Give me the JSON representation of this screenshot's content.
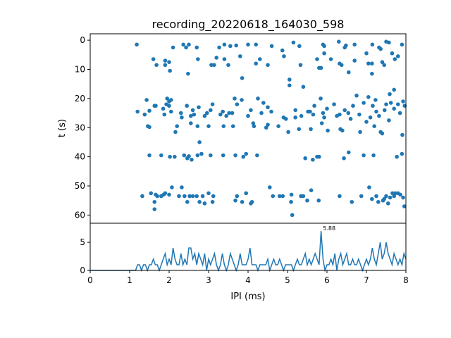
{
  "chart_data": [
    {
      "type": "scatter",
      "title": "recording_20220618_164030_598",
      "xlabel": "",
      "ylabel": "t (s)",
      "xlim": [
        0,
        8
      ],
      "ylim": [
        62.8,
        -2.2
      ],
      "y_inverted": true,
      "yticks": [
        "0",
        "10",
        "20",
        "30",
        "40",
        "50",
        "60"
      ],
      "color": "#1f77b4",
      "points": [
        [
          1.18,
          1.5
        ],
        [
          2.1,
          2.5
        ],
        [
          2.36,
          1.5
        ],
        [
          2.43,
          2.5
        ],
        [
          2.5,
          1.5
        ],
        [
          2.7,
          2.5
        ],
        [
          3.27,
          2.5
        ],
        [
          3.7,
          1.8
        ],
        [
          4.0,
          1.5
        ],
        [
          4.2,
          1.5
        ],
        [
          4.6,
          2
        ],
        [
          4.87,
          3.5
        ],
        [
          5.15,
          0.8
        ],
        [
          5.3,
          2
        ],
        [
          5.9,
          1.5
        ],
        [
          5.93,
          2
        ],
        [
          6.3,
          0.5
        ],
        [
          6.45,
          2.5
        ],
        [
          6.7,
          1.5
        ],
        [
          7.15,
          1.5
        ],
        [
          7.32,
          2.5
        ],
        [
          7.57,
          0.8
        ],
        [
          7.9,
          1.5
        ],
        [
          3.4,
          1.5
        ],
        [
          3.55,
          2
        ],
        [
          6.48,
          1.8
        ],
        [
          7.5,
          0.5
        ],
        [
          1.6,
          6.5
        ],
        [
          1.68,
          8.5
        ],
        [
          1.9,
          8.5
        ],
        [
          1.9,
          7
        ],
        [
          2.02,
          10.5
        ],
        [
          2.48,
          11.5
        ],
        [
          2.73,
          6.5
        ],
        [
          3.07,
          8.5
        ],
        [
          3.14,
          8.5
        ],
        [
          3.4,
          6.5
        ],
        [
          3.5,
          8.5
        ],
        [
          3.8,
          5.5
        ],
        [
          3.85,
          13
        ],
        [
          4.2,
          8
        ],
        [
          4.3,
          6.5
        ],
        [
          4.5,
          8.5
        ],
        [
          5.33,
          8.5
        ],
        [
          5.75,
          6.5
        ],
        [
          5.8,
          9.5
        ],
        [
          5.85,
          9.5
        ],
        [
          5.93,
          4.5
        ],
        [
          6.1,
          6.5
        ],
        [
          6.32,
          8
        ],
        [
          6.37,
          8.5
        ],
        [
          6.7,
          7
        ],
        [
          7.0,
          4.5
        ],
        [
          7.05,
          8
        ],
        [
          7.14,
          8
        ],
        [
          7.36,
          3
        ],
        [
          7.72,
          6.5
        ],
        [
          7.8,
          5.5
        ],
        [
          4.91,
          5.5
        ],
        [
          5.05,
          13.5
        ],
        [
          5.05,
          15.5
        ],
        [
          7.14,
          11.5
        ],
        [
          2.0,
          7.5
        ],
        [
          3.2,
          6
        ],
        [
          6.55,
          11
        ],
        [
          7.45,
          8.5
        ],
        [
          7.4,
          7.5
        ],
        [
          7.65,
          4.5
        ],
        [
          1.2,
          24.5
        ],
        [
          1.38,
          25.5
        ],
        [
          1.43,
          20.5
        ],
        [
          1.63,
          22.5
        ],
        [
          1.66,
          22.5
        ],
        [
          1.93,
          22
        ],
        [
          1.95,
          20
        ],
        [
          2.0,
          21
        ],
        [
          2.05,
          20.5
        ],
        [
          1.85,
          23.5
        ],
        [
          1.88,
          25.5
        ],
        [
          2.0,
          22.5
        ],
        [
          2.05,
          24.5
        ],
        [
          2.3,
          25
        ],
        [
          2.32,
          26.5
        ],
        [
          2.55,
          26
        ],
        [
          2.63,
          25.5
        ],
        [
          2.9,
          26
        ],
        [
          2.96,
          25
        ],
        [
          3.05,
          24
        ],
        [
          3.3,
          25.5
        ],
        [
          3.36,
          24.5
        ],
        [
          3.52,
          25
        ],
        [
          3.66,
          20
        ],
        [
          3.72,
          22
        ],
        [
          3.84,
          20.5
        ],
        [
          4.0,
          26
        ],
        [
          4.07,
          24
        ],
        [
          4.34,
          25
        ],
        [
          4.39,
          21.5
        ],
        [
          4.59,
          24.5
        ],
        [
          4.9,
          26.5
        ],
        [
          5.4,
          16
        ],
        [
          5.52,
          24.5
        ],
        [
          5.57,
          24.5
        ],
        [
          5.68,
          22.5
        ],
        [
          5.84,
          20
        ],
        [
          5.9,
          25
        ],
        [
          5.93,
          26.5
        ],
        [
          6.18,
          22
        ],
        [
          6.32,
          25.5
        ],
        [
          6.54,
          25
        ],
        [
          6.66,
          22.5
        ],
        [
          6.82,
          25.5
        ],
        [
          6.93,
          21.5
        ],
        [
          7.16,
          22.5
        ],
        [
          7.23,
          20.5
        ],
        [
          7.32,
          26
        ],
        [
          7.46,
          24
        ],
        [
          7.59,
          18.5
        ],
        [
          7.8,
          22
        ],
        [
          7.93,
          21
        ],
        [
          2.45,
          22.5
        ],
        [
          2.6,
          24
        ],
        [
          2.75,
          23
        ],
        [
          3.1,
          22
        ],
        [
          3.45,
          26
        ],
        [
          3.6,
          25
        ],
        [
          4.25,
          20
        ],
        [
          4.5,
          23
        ],
        [
          5.2,
          24
        ],
        [
          5.35,
          26
        ],
        [
          5.65,
          25.5
        ],
        [
          6.0,
          23.5
        ],
        [
          6.25,
          26
        ],
        [
          6.45,
          24
        ],
        [
          6.6,
          27
        ],
        [
          6.75,
          19
        ],
        [
          7.05,
          19.5
        ],
        [
          7.1,
          26.5
        ],
        [
          7.25,
          24.5
        ],
        [
          7.5,
          22
        ],
        [
          7.62,
          21.5
        ],
        [
          7.7,
          23.5
        ],
        [
          7.85,
          25
        ],
        [
          7.97,
          22.5
        ],
        [
          1.5,
          24.2
        ],
        [
          2.55,
          28.5
        ],
        [
          2.2,
          29.5
        ],
        [
          1.46,
          29.5
        ],
        [
          2.16,
          31.5
        ],
        [
          2.72,
          29.5
        ],
        [
          2.77,
          35
        ],
        [
          3.0,
          29.5
        ],
        [
          3.38,
          29.5
        ],
        [
          3.62,
          29.5
        ],
        [
          4.13,
          28.5
        ],
        [
          4.46,
          30
        ],
        [
          4.77,
          29.5
        ],
        [
          5.02,
          31.5
        ],
        [
          5.29,
          30.5
        ],
        [
          5.59,
          30.5
        ],
        [
          5.87,
          28.5
        ],
        [
          6.02,
          31
        ],
        [
          6.39,
          31
        ],
        [
          6.84,
          31.5
        ],
        [
          7.2,
          29.5
        ],
        [
          7.36,
          31.5
        ],
        [
          7.91,
          32.5
        ],
        [
          4.5,
          29
        ],
        [
          4.96,
          27
        ],
        [
          5.2,
          26.5
        ],
        [
          7.0,
          28
        ],
        [
          7.57,
          27.5
        ],
        [
          7.7,
          17
        ],
        [
          1.5,
          29.8
        ],
        [
          4.15,
          29.5
        ],
        [
          6.34,
          30.5
        ],
        [
          7.4,
          32
        ],
        [
          1.5,
          39.5
        ],
        [
          1.8,
          39.5
        ],
        [
          2.02,
          40
        ],
        [
          2.14,
          40
        ],
        [
          2.38,
          39.5
        ],
        [
          2.46,
          40.5
        ],
        [
          2.57,
          41
        ],
        [
          2.72,
          39.5
        ],
        [
          2.82,
          39
        ],
        [
          3.05,
          39.5
        ],
        [
          3.37,
          39.5
        ],
        [
          3.68,
          39.5
        ],
        [
          3.88,
          40
        ],
        [
          3.95,
          39
        ],
        [
          4.23,
          39.5
        ],
        [
          5.45,
          40.5
        ],
        [
          5.64,
          41
        ],
        [
          5.75,
          40
        ],
        [
          6.43,
          40.5
        ],
        [
          6.55,
          38.5
        ],
        [
          6.93,
          39.5
        ],
        [
          7.18,
          39.5
        ],
        [
          7.77,
          40
        ],
        [
          7.9,
          39
        ],
        [
          5.8,
          40
        ],
        [
          2.5,
          39.8
        ],
        [
          1.32,
          53.5
        ],
        [
          1.54,
          52.5
        ],
        [
          1.63,
          55.5
        ],
        [
          1.63,
          58
        ],
        [
          1.66,
          53
        ],
        [
          1.8,
          53.5
        ],
        [
          1.86,
          53
        ],
        [
          1.9,
          52.5
        ],
        [
          2.07,
          50.5
        ],
        [
          2.25,
          53.5
        ],
        [
          2.32,
          50.5
        ],
        [
          2.39,
          53.5
        ],
        [
          2.46,
          55.5
        ],
        [
          2.52,
          53.5
        ],
        [
          2.7,
          53.5
        ],
        [
          2.77,
          55.5
        ],
        [
          2.9,
          56
        ],
        [
          3.0,
          52.5
        ],
        [
          3.1,
          55.5
        ],
        [
          3.12,
          53.5
        ],
        [
          3.68,
          55
        ],
        [
          3.72,
          53.5
        ],
        [
          3.95,
          52.5
        ],
        [
          4.07,
          56
        ],
        [
          4.55,
          50.5
        ],
        [
          4.63,
          53.5
        ],
        [
          4.8,
          53.5
        ],
        [
          4.88,
          53.5
        ],
        [
          5.09,
          55.5
        ],
        [
          5.12,
          60
        ],
        [
          5.34,
          53.5
        ],
        [
          5.4,
          53.5
        ],
        [
          5.6,
          51.5
        ],
        [
          5.79,
          55
        ],
        [
          6.32,
          53.5
        ],
        [
          6.63,
          55.5
        ],
        [
          6.87,
          53.5
        ],
        [
          7.07,
          50.5
        ],
        [
          7.14,
          54.5
        ],
        [
          7.3,
          55.5
        ],
        [
          7.5,
          53.5
        ],
        [
          7.66,
          52.5
        ],
        [
          7.73,
          52.5
        ],
        [
          7.8,
          52.5
        ],
        [
          7.86,
          53
        ],
        [
          7.93,
          54
        ],
        [
          7.96,
          57
        ],
        [
          7.6,
          54
        ],
        [
          7.42,
          55
        ],
        [
          7.45,
          54.5
        ],
        [
          1.7,
          53.5
        ],
        [
          2.0,
          53
        ],
        [
          2.6,
          53.5
        ],
        [
          2.85,
          53.5
        ],
        [
          3.85,
          55.5
        ],
        [
          4.1,
          55.5
        ],
        [
          5.1,
          53
        ],
        [
          5.5,
          55
        ],
        [
          7.25,
          53.5
        ],
        [
          7.55,
          56
        ],
        [
          7.7,
          53.5
        ]
      ]
    },
    {
      "type": "line",
      "xlabel": "IPI (ms)",
      "ylabel": "",
      "xlim": [
        0,
        8
      ],
      "ylim": [
        0,
        8.4
      ],
      "xticks": [
        "0",
        "1",
        "2",
        "3",
        "4",
        "5",
        "6",
        "7",
        "8"
      ],
      "yticks": [
        "0",
        "5"
      ],
      "color": "#1f77b4",
      "x_step": 0.05,
      "values": [
        0,
        0,
        0,
        0,
        0,
        0,
        0,
        0,
        0,
        0,
        0,
        0,
        0,
        0,
        0,
        0,
        0,
        0,
        0,
        0,
        0,
        0,
        0,
        0,
        1,
        1,
        0,
        1,
        1,
        0,
        1,
        1,
        2,
        1,
        1,
        0,
        1,
        2,
        3,
        1,
        2,
        1,
        4,
        2,
        1,
        1,
        3,
        1,
        2,
        1,
        4,
        4,
        2,
        3,
        1,
        3,
        2,
        1,
        3,
        0,
        2,
        1,
        2,
        3,
        1,
        0,
        1,
        3,
        1,
        0,
        1,
        3,
        2,
        1,
        0,
        1,
        3,
        1,
        1,
        1,
        2,
        4,
        1,
        1,
        1,
        0,
        1,
        1,
        1,
        1,
        2,
        0,
        1,
        2,
        1,
        1,
        2,
        1,
        0,
        1,
        1,
        1,
        1,
        0,
        1,
        2,
        1,
        1,
        2,
        3,
        1,
        2,
        1,
        2,
        3,
        2,
        1,
        7,
        2,
        0,
        1,
        1,
        2,
        1,
        3,
        0,
        2,
        3,
        1,
        2,
        3,
        1,
        1,
        2,
        1,
        1,
        2,
        1,
        0,
        1,
        2,
        1,
        2,
        4,
        2,
        1,
        3,
        5,
        2,
        3,
        5,
        3,
        2,
        1,
        3,
        2,
        1,
        2,
        1,
        3,
        2
      ],
      "annotation": {
        "x": 5.88,
        "y": 7,
        "text": "5.88"
      }
    }
  ]
}
